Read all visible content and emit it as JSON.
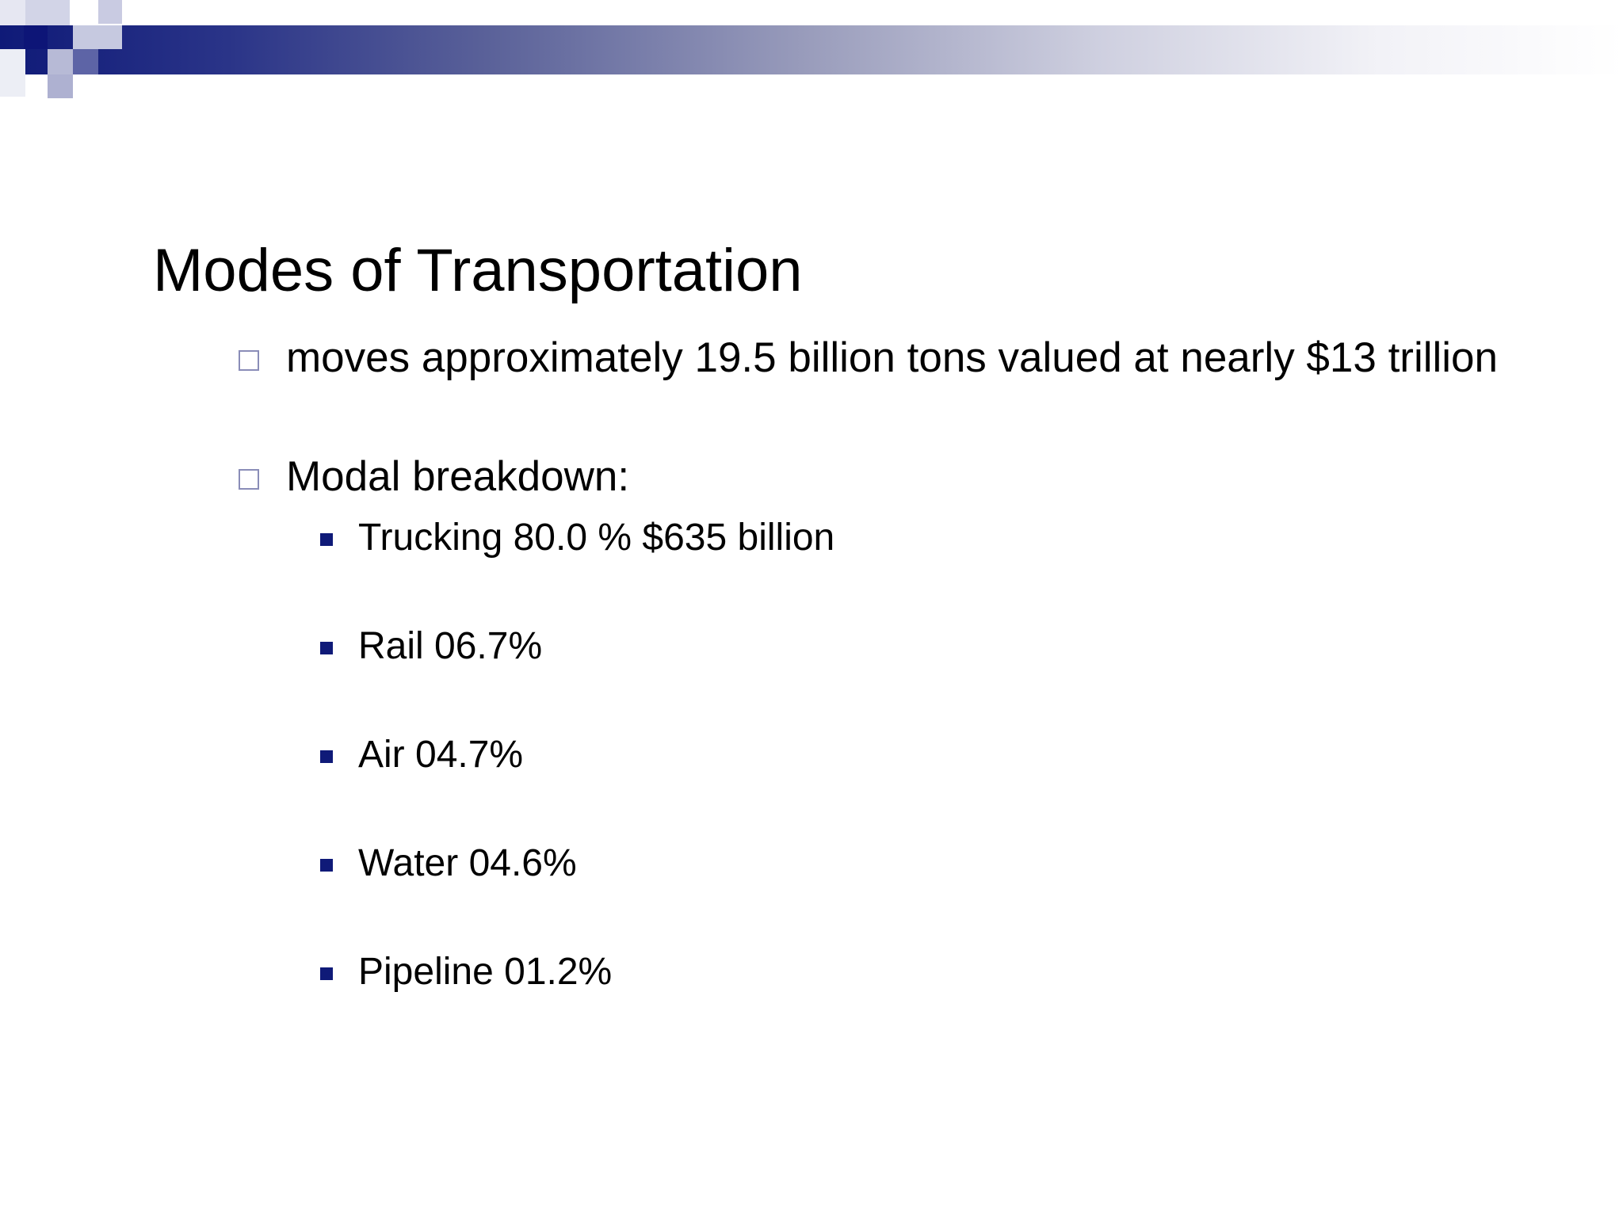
{
  "slide": {
    "title": "Modes of Transportation",
    "bullets": [
      {
        "text": "moves approximately 19.5 billion tons valued at nearly $13 trillion"
      },
      {
        "text": "Modal breakdown:"
      }
    ],
    "sub_bullets": [
      {
        "text": "Trucking 80.0 % $635 billion"
      },
      {
        "text": "Rail 06.7%"
      },
      {
        "text": "Air 04.7%"
      },
      {
        "text": "Water 04.6%"
      },
      {
        "text": "Pipeline 01.2%"
      }
    ]
  },
  "colors": {
    "accent": "#0f1a78",
    "hollow_bullet": "#8a8db8",
    "text": "#000000"
  }
}
